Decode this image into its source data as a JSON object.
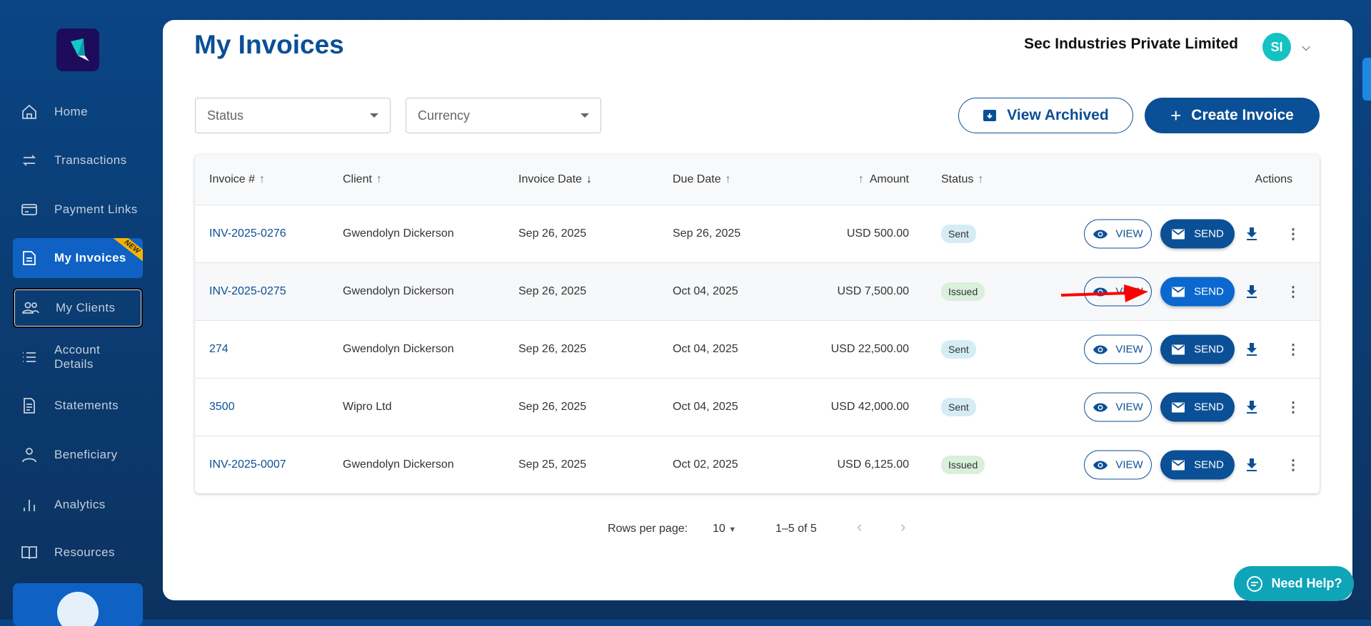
{
  "sidebar": {
    "items": [
      {
        "label": "Home",
        "icon": "home-icon"
      },
      {
        "label": "Transactions",
        "icon": "transfer-icon"
      },
      {
        "label": "Payment Links",
        "icon": "card-icon"
      },
      {
        "label": "My Invoices",
        "icon": "invoice-icon",
        "active": true,
        "badge": "NEW"
      },
      {
        "label": "My Clients",
        "icon": "clients-icon"
      },
      {
        "label": "Account Details",
        "icon": "list-icon"
      },
      {
        "label": "Statements",
        "icon": "document-icon"
      },
      {
        "label": "Beneficiary",
        "icon": "user-icon"
      },
      {
        "label": "Analytics",
        "icon": "bar-chart-icon"
      },
      {
        "label": "Resources",
        "icon": "book-icon"
      }
    ]
  },
  "header": {
    "title": "My Invoices",
    "company": "Sec Industries Private Limited",
    "avatar": "SI"
  },
  "filters": {
    "status": "Status",
    "currency": "Currency"
  },
  "buttons": {
    "view_archived": "View Archived",
    "create_invoice": "Create Invoice",
    "create_icon": "+"
  },
  "table": {
    "headers": {
      "invoice": "Invoice #",
      "client": "Client",
      "invoice_date": "Invoice Date",
      "due_date": "Due Date",
      "amount": "Amount",
      "status": "Status",
      "actions": "Actions"
    },
    "sort": {
      "invoice": "↑",
      "client": "↑",
      "invoice_date": "↓",
      "due_date": "↑",
      "amount": "↑",
      "status": "↑"
    },
    "view_label": "VIEW",
    "send_label": "SEND",
    "rows": [
      {
        "invoice": "INV-2025-0276",
        "client": "Gwendolyn Dickerson",
        "invoice_date": "Sep 26, 2025",
        "due_date": "Sep 26, 2025",
        "amount": "USD 500.00",
        "status": "Sent"
      },
      {
        "invoice": "INV-2025-0275",
        "client": "Gwendolyn Dickerson",
        "invoice_date": "Sep 26, 2025",
        "due_date": "Oct 04, 2025",
        "amount": "USD 7,500.00",
        "status": "Issued"
      },
      {
        "invoice": "274",
        "client": "Gwendolyn Dickerson",
        "invoice_date": "Sep 26, 2025",
        "due_date": "Oct 04, 2025",
        "amount": "USD 22,500.00",
        "status": "Sent"
      },
      {
        "invoice": "3500",
        "client": "Wipro Ltd",
        "invoice_date": "Sep 26, 2025",
        "due_date": "Oct 04, 2025",
        "amount": "USD 42,000.00",
        "status": "Sent"
      },
      {
        "invoice": "INV-2025-0007",
        "client": "Gwendolyn Dickerson",
        "invoice_date": "Sep 25, 2025",
        "due_date": "Oct 02, 2025",
        "amount": "USD 6,125.00",
        "status": "Issued"
      }
    ]
  },
  "pagination": {
    "rows_per_page_label": "Rows per page:",
    "rows_per_page": "10",
    "range": "1–5 of 5"
  },
  "help": {
    "label": "Need Help?"
  },
  "colors": {
    "primary": "#0b4f96",
    "accent": "#0f62c4",
    "sent": "#d5ecf5",
    "issued": "#d9f0dc",
    "help": "#0ea5b8",
    "annotation": "#ff0000"
  }
}
